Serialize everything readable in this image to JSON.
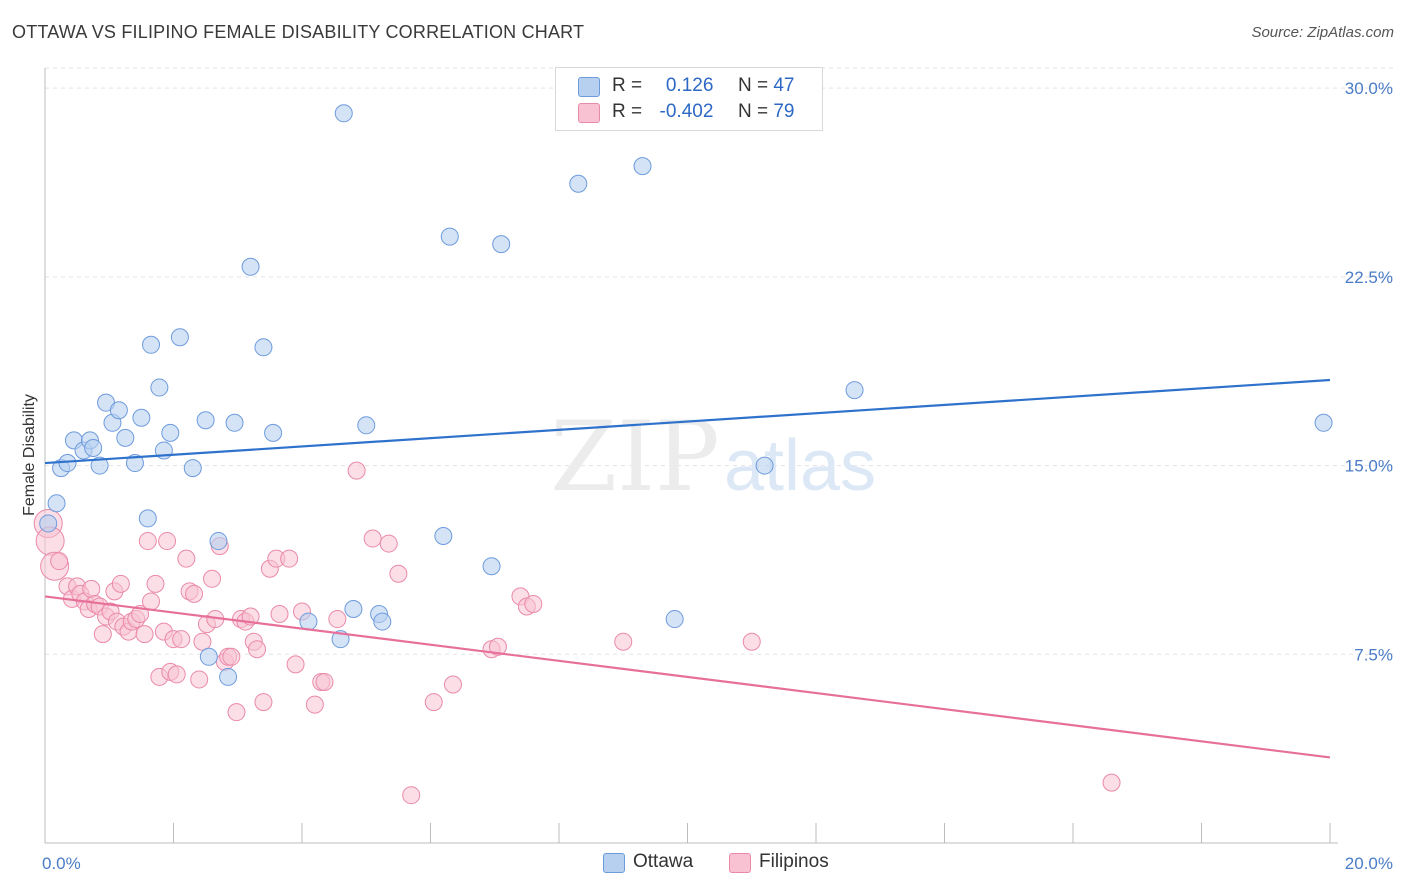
{
  "header": {
    "title": "OTTAWA VS FILIPINO FEMALE DISABILITY CORRELATION CHART",
    "source": "Source: ZipAtlas.com"
  },
  "watermark": {
    "zip": "ZIP",
    "atlas": "atlas"
  },
  "legend": {
    "rows": [
      {
        "r_label": "R =",
        "r_value": "0.126",
        "n_label": "N =",
        "n_value": "47"
      },
      {
        "r_label": "R =",
        "r_value": "-0.402",
        "n_label": "N =",
        "n_value": "79"
      }
    ],
    "bottom": [
      "Ottawa",
      "Filipinos"
    ]
  },
  "colors": {
    "ottawa_fill": "#b7d0f0",
    "ottawa_stroke": "#6e9bdc",
    "ottawa_line": "#2e72cc",
    "filipinos_fill": "#f8c2d2",
    "filipinos_stroke": "#ea8aaa",
    "filipinos_line": "#e6709a",
    "grid": "#e3e3e3",
    "tick_label": "#4a7cc7"
  },
  "chart_data": {
    "type": "scatter",
    "ylabel": "Female Disability",
    "xlim": [
      0,
      20
    ],
    "ylim": [
      0,
      30.8
    ],
    "x_tick_labels": [
      {
        "value": 0,
        "label": "0.0%"
      },
      {
        "value": 20,
        "label": "20.0%"
      }
    ],
    "y_tick_labels": [
      {
        "value": 7.5,
        "label": "7.5%"
      },
      {
        "value": 15,
        "label": "15.0%"
      },
      {
        "value": 22.5,
        "label": "22.5%"
      },
      {
        "value": 30,
        "label": "30.0%"
      }
    ],
    "grid": "horizontal dashed",
    "legend_position": "top-center",
    "series": [
      {
        "name": "Ottawa",
        "stats": {
          "R": 0.126,
          "N": 47
        },
        "trend": {
          "x": [
            0,
            20
          ],
          "y": [
            15.1,
            18.4
          ]
        },
        "points": [
          [
            0.05,
            12.7
          ],
          [
            0.18,
            13.5
          ],
          [
            0.25,
            14.9
          ],
          [
            0.35,
            15.1
          ],
          [
            0.45,
            16.0
          ],
          [
            0.6,
            15.6
          ],
          [
            0.7,
            16.0
          ],
          [
            0.75,
            15.7
          ],
          [
            0.85,
            15.0
          ],
          [
            0.95,
            17.5
          ],
          [
            1.05,
            16.7
          ],
          [
            1.15,
            17.2
          ],
          [
            1.25,
            16.1
          ],
          [
            1.4,
            15.1
          ],
          [
            1.5,
            16.9
          ],
          [
            1.6,
            12.9
          ],
          [
            1.65,
            19.8
          ],
          [
            1.78,
            18.1
          ],
          [
            1.85,
            15.6
          ],
          [
            1.95,
            16.3
          ],
          [
            2.1,
            20.1
          ],
          [
            2.3,
            14.9
          ],
          [
            2.5,
            16.8
          ],
          [
            2.7,
            12.0
          ],
          [
            2.95,
            16.7
          ],
          [
            3.2,
            22.9
          ],
          [
            3.4,
            19.7
          ],
          [
            3.55,
            16.3
          ],
          [
            2.55,
            7.4
          ],
          [
            2.85,
            6.6
          ],
          [
            4.1,
            8.8
          ],
          [
            4.6,
            8.1
          ],
          [
            4.65,
            29.0
          ],
          [
            4.8,
            9.3
          ],
          [
            5.0,
            16.6
          ],
          [
            5.2,
            9.1
          ],
          [
            5.25,
            8.8
          ],
          [
            6.2,
            12.2
          ],
          [
            6.3,
            24.1
          ],
          [
            6.95,
            11.0
          ],
          [
            7.1,
            23.8
          ],
          [
            8.3,
            26.2
          ],
          [
            9.3,
            26.9
          ],
          [
            9.8,
            8.9
          ],
          [
            11.2,
            15.0
          ],
          [
            12.6,
            18.0
          ],
          [
            19.9,
            16.7
          ]
        ]
      },
      {
        "name": "Filipinos",
        "stats": {
          "R": -0.402,
          "N": 79
        },
        "trend": {
          "x": [
            0,
            20
          ],
          "y": [
            9.8,
            3.4
          ]
        },
        "points": [
          [
            0.05,
            12.7
          ],
          [
            0.08,
            12.0
          ],
          [
            0.15,
            11.0
          ],
          [
            0.22,
            11.2
          ],
          [
            0.35,
            10.2
          ],
          [
            0.42,
            9.7
          ],
          [
            0.5,
            10.2
          ],
          [
            0.55,
            9.9
          ],
          [
            0.62,
            9.6
          ],
          [
            0.68,
            9.3
          ],
          [
            0.72,
            10.1
          ],
          [
            0.78,
            9.5
          ],
          [
            0.85,
            9.4
          ],
          [
            0.9,
            8.3
          ],
          [
            0.95,
            9.0
          ],
          [
            1.02,
            9.2
          ],
          [
            1.08,
            10.0
          ],
          [
            1.12,
            8.8
          ],
          [
            1.18,
            10.3
          ],
          [
            1.22,
            8.6
          ],
          [
            1.3,
            8.4
          ],
          [
            1.35,
            8.8
          ],
          [
            1.42,
            8.9
          ],
          [
            1.48,
            9.1
          ],
          [
            1.55,
            8.3
          ],
          [
            1.6,
            12.0
          ],
          [
            1.65,
            9.6
          ],
          [
            1.72,
            10.3
          ],
          [
            1.78,
            6.6
          ],
          [
            1.85,
            8.4
          ],
          [
            1.9,
            12.0
          ],
          [
            1.95,
            6.8
          ],
          [
            2.0,
            8.1
          ],
          [
            2.05,
            6.7
          ],
          [
            2.12,
            8.1
          ],
          [
            2.2,
            11.3
          ],
          [
            2.25,
            10.0
          ],
          [
            2.32,
            9.9
          ],
          [
            2.4,
            6.5
          ],
          [
            2.45,
            8.0
          ],
          [
            2.52,
            8.7
          ],
          [
            2.6,
            10.5
          ],
          [
            2.65,
            8.9
          ],
          [
            2.72,
            11.8
          ],
          [
            2.8,
            7.2
          ],
          [
            2.85,
            7.4
          ],
          [
            2.9,
            7.4
          ],
          [
            2.98,
            5.2
          ],
          [
            3.05,
            8.9
          ],
          [
            3.12,
            8.8
          ],
          [
            3.2,
            9.0
          ],
          [
            3.25,
            8.0
          ],
          [
            3.3,
            7.7
          ],
          [
            3.4,
            5.6
          ],
          [
            3.5,
            10.9
          ],
          [
            3.6,
            11.3
          ],
          [
            3.65,
            9.1
          ],
          [
            3.8,
            11.3
          ],
          [
            3.9,
            7.1
          ],
          [
            4.0,
            9.2
          ],
          [
            4.2,
            5.5
          ],
          [
            4.3,
            6.4
          ],
          [
            4.35,
            6.4
          ],
          [
            4.55,
            8.9
          ],
          [
            4.85,
            14.8
          ],
          [
            5.1,
            12.1
          ],
          [
            5.35,
            11.9
          ],
          [
            5.5,
            10.7
          ],
          [
            5.7,
            1.9
          ],
          [
            6.05,
            5.6
          ],
          [
            6.35,
            6.3
          ],
          [
            6.95,
            7.7
          ],
          [
            7.05,
            7.8
          ],
          [
            7.4,
            9.8
          ],
          [
            7.5,
            9.4
          ],
          [
            7.6,
            9.5
          ],
          [
            9.0,
            8.0
          ],
          [
            11.0,
            8.0
          ],
          [
            16.6,
            2.4
          ]
        ]
      }
    ]
  }
}
